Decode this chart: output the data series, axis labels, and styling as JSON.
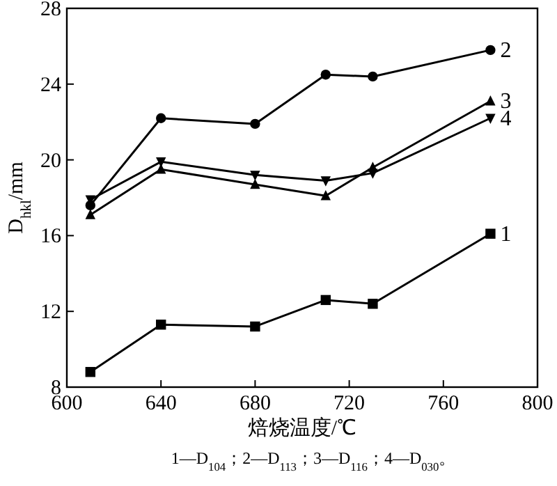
{
  "chart_data": {
    "type": "line",
    "xlabel": "焙烧温度/℃",
    "ylabel": "D$_{hkl}$/mm",
    "x": [
      610,
      640,
      680,
      710,
      730,
      780
    ],
    "series": [
      {
        "name": "1",
        "color": "#000000",
        "marker": "square",
        "values": [
          8.8,
          11.3,
          11.2,
          12.6,
          12.4,
          16.1
        ]
      },
      {
        "name": "2",
        "color": "#000000",
        "marker": "circle",
        "values": [
          17.6,
          22.2,
          21.9,
          24.5,
          24.4,
          25.8
        ]
      },
      {
        "name": "3",
        "color": "#000000",
        "marker": "triangle",
        "values": [
          17.1,
          19.5,
          18.7,
          18.1,
          19.6,
          23.1
        ]
      },
      {
        "name": "4",
        "color": "#000000",
        "marker": "triangle-down",
        "values": [
          17.9,
          19.9,
          19.2,
          18.9,
          19.3,
          22.2
        ]
      }
    ],
    "xlim": [
      600,
      800
    ],
    "xticks": [
      600,
      640,
      680,
      720,
      760,
      800
    ],
    "ylim": [
      8,
      28
    ],
    "yticks": [
      8,
      12,
      16,
      20,
      24,
      28
    ],
    "grid": false,
    "line_style": "solid",
    "annotations": [
      "1—D$_{104}$；2—D$_{113}$；3—D$_{116}$；4—D$_{030}$。"
    ]
  }
}
